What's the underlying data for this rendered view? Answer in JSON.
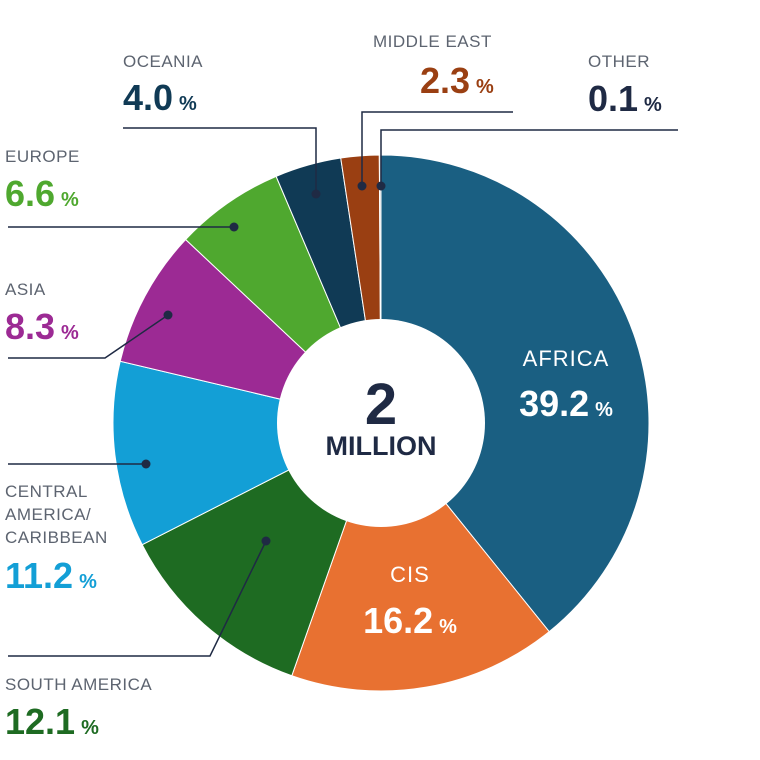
{
  "chart_data": {
    "type": "pie",
    "variant": "donut",
    "center_text": {
      "number": "2",
      "unit": "MILLION"
    },
    "percent_sign": "%",
    "slices": [
      {
        "name": "AFRICA",
        "value": 39.2,
        "display": "39.2",
        "color": "#1a5f82"
      },
      {
        "name": "CIS",
        "value": 16.2,
        "display": "16.2",
        "color": "#e87131"
      },
      {
        "name": "SOUTH AMERICA",
        "value": 12.1,
        "display": "12.1",
        "color": "#1e6b22"
      },
      {
        "name": "CENTRAL AMERICA/ CARIBBEAN",
        "lines": [
          "CENTRAL",
          "AMERICA/",
          "CARIBBEAN"
        ],
        "value": 11.2,
        "display": "11.2",
        "color": "#139fd6"
      },
      {
        "name": "ASIA",
        "value": 8.3,
        "display": "8.3",
        "color": "#9c2a94"
      },
      {
        "name": "EUROPE",
        "value": 6.6,
        "display": "6.6",
        "color": "#4fa82f"
      },
      {
        "name": "OCEANIA",
        "value": 4.0,
        "display": "4.0",
        "color": "#103a55"
      },
      {
        "name": "MIDDLE EAST",
        "value": 2.3,
        "display": "2.3",
        "color": "#9a3f12"
      },
      {
        "name": "OTHER",
        "value": 0.1,
        "display": "0.1",
        "color": "#c9c9c9",
        "label_color": "#1f2a44"
      }
    ]
  }
}
